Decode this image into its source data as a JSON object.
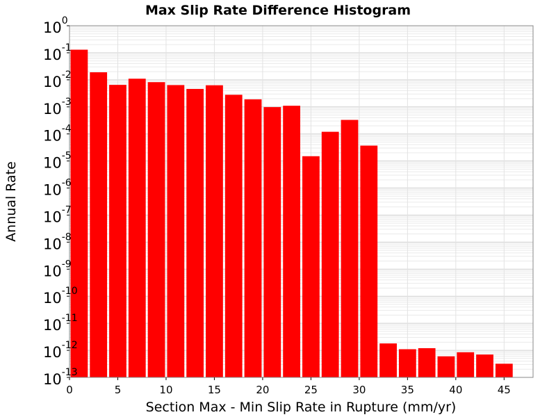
{
  "chart_data": {
    "type": "bar",
    "title": "Max Slip Rate Difference Histogram",
    "xlabel": "Section Max - Min Slip Rate in Rupture (mm/yr)",
    "ylabel": "Annual Rate",
    "x_scale": "linear",
    "y_scale": "log",
    "xlim": [
      0,
      48
    ],
    "ylim": [
      1e-13,
      1
    ],
    "xticks": [
      "0",
      "5",
      "10",
      "15",
      "20",
      "25",
      "30",
      "35",
      "40",
      "45"
    ],
    "yticks": [
      {
        "base": "10",
        "exp": "0"
      },
      {
        "base": "10",
        "exp": "-1"
      },
      {
        "base": "10",
        "exp": "-2"
      },
      {
        "base": "10",
        "exp": "-3"
      },
      {
        "base": "10",
        "exp": "-4"
      },
      {
        "base": "10",
        "exp": "-5"
      },
      {
        "base": "10",
        "exp": "-6"
      },
      {
        "base": "10",
        "exp": "-7"
      },
      {
        "base": "10",
        "exp": "-8"
      },
      {
        "base": "10",
        "exp": "-9"
      },
      {
        "base": "10",
        "exp": "-10"
      },
      {
        "base": "10",
        "exp": "-11"
      },
      {
        "base": "10",
        "exp": "-12"
      },
      {
        "base": "10",
        "exp": "-13"
      }
    ],
    "grid": true,
    "bar_color": "#ff0000",
    "bin_width": 2,
    "x": [
      1,
      3,
      5,
      7,
      9,
      11,
      13,
      15,
      17,
      19,
      21,
      23,
      25,
      27,
      29,
      31,
      33,
      35,
      37,
      39,
      41,
      43,
      45
    ],
    "values": [
      0.13,
      0.019,
      0.0065,
      0.011,
      0.0082,
      0.0064,
      0.0046,
      0.0063,
      0.0028,
      0.0019,
      0.00098,
      0.0011,
      1.5e-05,
      0.00012,
      0.00033,
      3.7e-05,
      1.8e-12,
      1.1e-12,
      1.2e-12,
      6e-13,
      8.5e-13,
      7e-13,
      3.2e-13
    ]
  }
}
